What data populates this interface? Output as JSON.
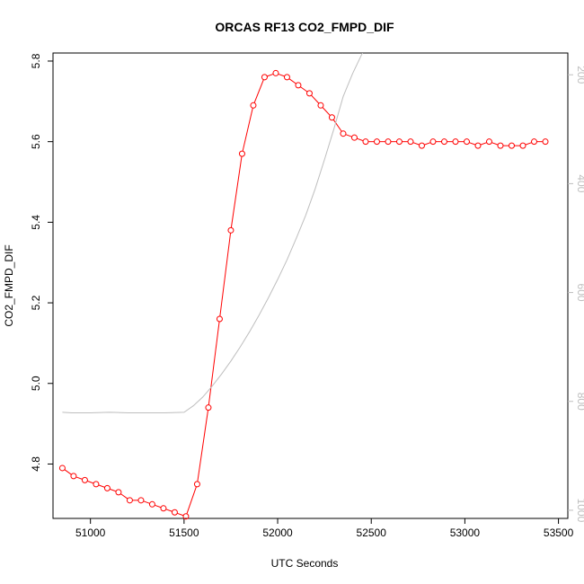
{
  "chart_data": {
    "type": "line",
    "title": "ORCAS RF13 CO2_FMPD_DIF",
    "xlabel": "UTC Seconds",
    "ylabel": "CO2_FMPD_DIF",
    "xlim": [
      50800,
      53550
    ],
    "ylim": [
      4.665,
      5.82
    ],
    "y2lim": [
      1015,
      160
    ],
    "x_ticks": [
      51000,
      51500,
      52000,
      52500,
      53000,
      53500
    ],
    "x_tick_labels": [
      "51000",
      "51500",
      "52000",
      "52500",
      "53000",
      "53500"
    ],
    "y_ticks": [
      4.8,
      5.0,
      5.2,
      5.4,
      5.6,
      5.8
    ],
    "y_tick_labels": [
      "4.8",
      "5.0",
      "5.2",
      "5.4",
      "5.6",
      "5.8"
    ],
    "y2_ticks": [
      200,
      400,
      600,
      800,
      1000
    ],
    "y2_tick_labels": [
      "200",
      "400",
      "600",
      "800",
      "1000"
    ],
    "grid": false,
    "series": [
      {
        "axis": "left",
        "style": "points-and-line",
        "color": "#ff0000",
        "x": [
          50850,
          50910,
          50970,
          51030,
          51090,
          51150,
          51210,
          51270,
          51330,
          51390,
          51450,
          51510,
          51570,
          51630,
          51690,
          51750,
          51810,
          51870,
          51930,
          51990,
          52050,
          52110,
          52170,
          52230,
          52290,
          52350,
          52410,
          52470,
          52530,
          52590,
          52650,
          52710,
          52770,
          52830,
          52890,
          52950,
          53010,
          53070,
          53130,
          53190,
          53250,
          53310,
          53370,
          53430
        ],
        "y": [
          4.79,
          4.77,
          4.76,
          4.75,
          4.74,
          4.73,
          4.71,
          4.71,
          4.7,
          4.69,
          4.68,
          4.67,
          4.75,
          4.94,
          5.16,
          5.38,
          5.57,
          5.69,
          5.76,
          5.77,
          5.76,
          5.74,
          5.72,
          5.69,
          5.66,
          5.62,
          5.61,
          5.6,
          5.6,
          5.6,
          5.6,
          5.6,
          5.59,
          5.6,
          5.6,
          5.6,
          5.6,
          5.59,
          5.6,
          5.59,
          5.59,
          5.59,
          5.6,
          5.6
        ]
      },
      {
        "axis": "right",
        "style": "line",
        "color": "#bebebe",
        "x": [
          50850,
          50900,
          51000,
          51100,
          51200,
          51300,
          51400,
          51500,
          51550,
          51600,
          51650,
          51700,
          51750,
          51800,
          51850,
          51900,
          51950,
          52000,
          52050,
          52100,
          52150,
          52200,
          52250,
          52300,
          52350,
          52400,
          52450,
          52500,
          52550,
          52600,
          52700,
          52800,
          52900,
          52950,
          53000,
          53050
        ],
        "y": [
          820,
          821,
          821,
          820,
          821,
          821,
          821,
          820,
          808,
          792,
          772,
          750,
          726,
          700,
          672,
          642,
          610,
          576,
          540,
          500,
          458,
          410,
          356,
          300,
          240,
          198,
          162,
          128,
          95,
          85,
          86,
          87,
          87,
          87,
          65,
          10
        ]
      }
    ]
  }
}
